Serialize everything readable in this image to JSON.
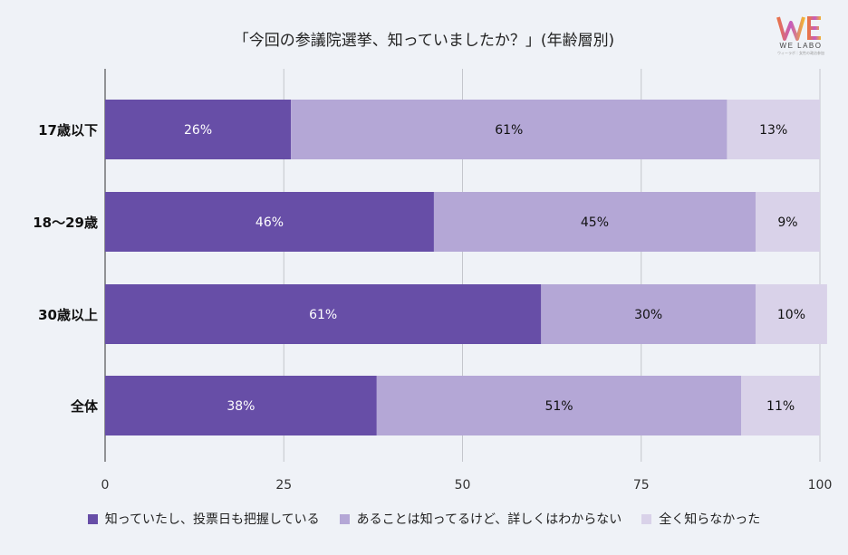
{
  "title": "「今回の参議院選挙、知っていましたか？」(年齢層別)",
  "logo": {
    "brand": "WE LABO",
    "tagline": "ウィーラボ｜女性の政治参加"
  },
  "chart_data": {
    "type": "bar",
    "orientation": "horizontal",
    "stacked": true,
    "title": "「今回の参議院選挙、知っていましたか？」(年齢層別)",
    "categories": [
      "17歳以下",
      "18〜29歳",
      "30歳以上",
      "全体"
    ],
    "series": [
      {
        "name": "知っていたし、投票日も把握している",
        "values": [
          26,
          46,
          61,
          38
        ],
        "color": "#674ea7",
        "label_color": "#ffffff"
      },
      {
        "name": "あることは知ってるけど、詳しくはわからない",
        "values": [
          61,
          45,
          30,
          51
        ],
        "color": "#b4a7d6",
        "label_color": "#111111"
      },
      {
        "name": "全く知らなかった",
        "values": [
          13,
          9,
          10,
          11
        ],
        "color": "#d9d2e9",
        "label_color": "#111111"
      }
    ],
    "data_label_suffix": "%",
    "xlim": [
      0,
      100
    ],
    "xticks": [
      0,
      25,
      50,
      75,
      100
    ],
    "grid": true,
    "legend_position": "bottom"
  }
}
